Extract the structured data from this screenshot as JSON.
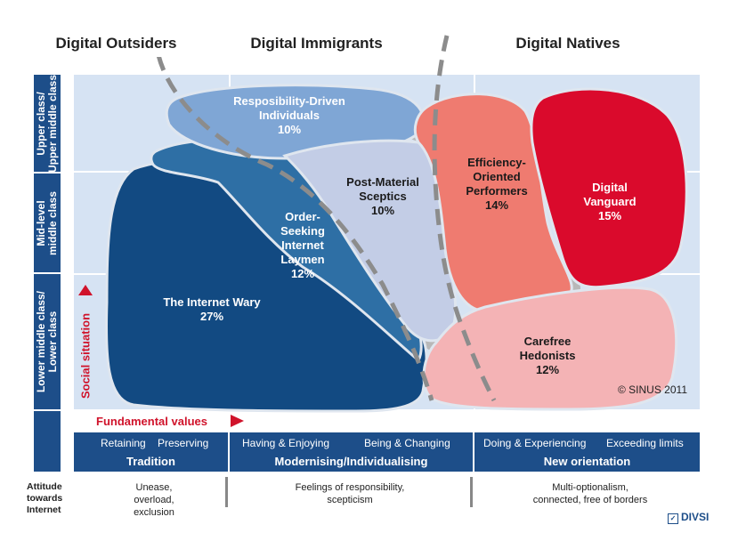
{
  "segments_header": {
    "outsiders": "Digital Outsiders",
    "immigrants": "Digital Immigrants",
    "natives": "Digital Natives"
  },
  "y_axis": {
    "upper": "Upper class/\nUpper middle class",
    "mid": "Mid-level\nmiddle class",
    "lower": "Lower middle class/\nLower class",
    "social_label": "Social situation"
  },
  "x_axis": {
    "fundamental_values": "Fundamental values"
  },
  "milieus": [
    {
      "name": "Resposibility-Driven\nIndividuals",
      "share": "10%",
      "color": "#7fa6d5"
    },
    {
      "name": "Order-\nSeeking\nInternet\nLaymen",
      "share": "12%",
      "color": "#2e6fa5"
    },
    {
      "name": "Post-Material\nSceptics",
      "share": "10%",
      "color": "#c3cde6"
    },
    {
      "name": "The Internet Wary",
      "share": "27%",
      "color": "#124a82"
    },
    {
      "name": "Efficiency-\nOriented\nPerformers",
      "share": "14%",
      "color": "#ef7b70"
    },
    {
      "name": "Digital\nVanguard",
      "share": "15%",
      "color": "#da0a2c"
    },
    {
      "name": "Carefree\nHedonists",
      "share": "12%",
      "color": "#f4b3b5"
    }
  ],
  "copyright": "© SINUS 2011",
  "value_blocks": [
    {
      "sub_left": "Retaining",
      "sub_right": "Preserving",
      "head": "Tradition"
    },
    {
      "sub_left": "Having & Enjoying",
      "sub_right": "Being & Changing",
      "head": "Modernising/Individualising"
    },
    {
      "sub_left": "Doing & Experiencing",
      "sub_right": "Exceeding limits",
      "head": "New orientation"
    }
  ],
  "attitude": {
    "label": "Attitude\ntowards\nInternet",
    "col1": "Unease,\noverload,\nexclusion",
    "col2": "Feelings of responsibility,\nscepticism",
    "col3": "Multi-optionalism,\nconnected, free of borders"
  },
  "logo": "DIVSI",
  "colors": {
    "background_panel": "#d6e3f3",
    "dark_blue": "#1d4e89",
    "accent_red": "#d0132b",
    "dashed_line": "#8c8c8c"
  }
}
